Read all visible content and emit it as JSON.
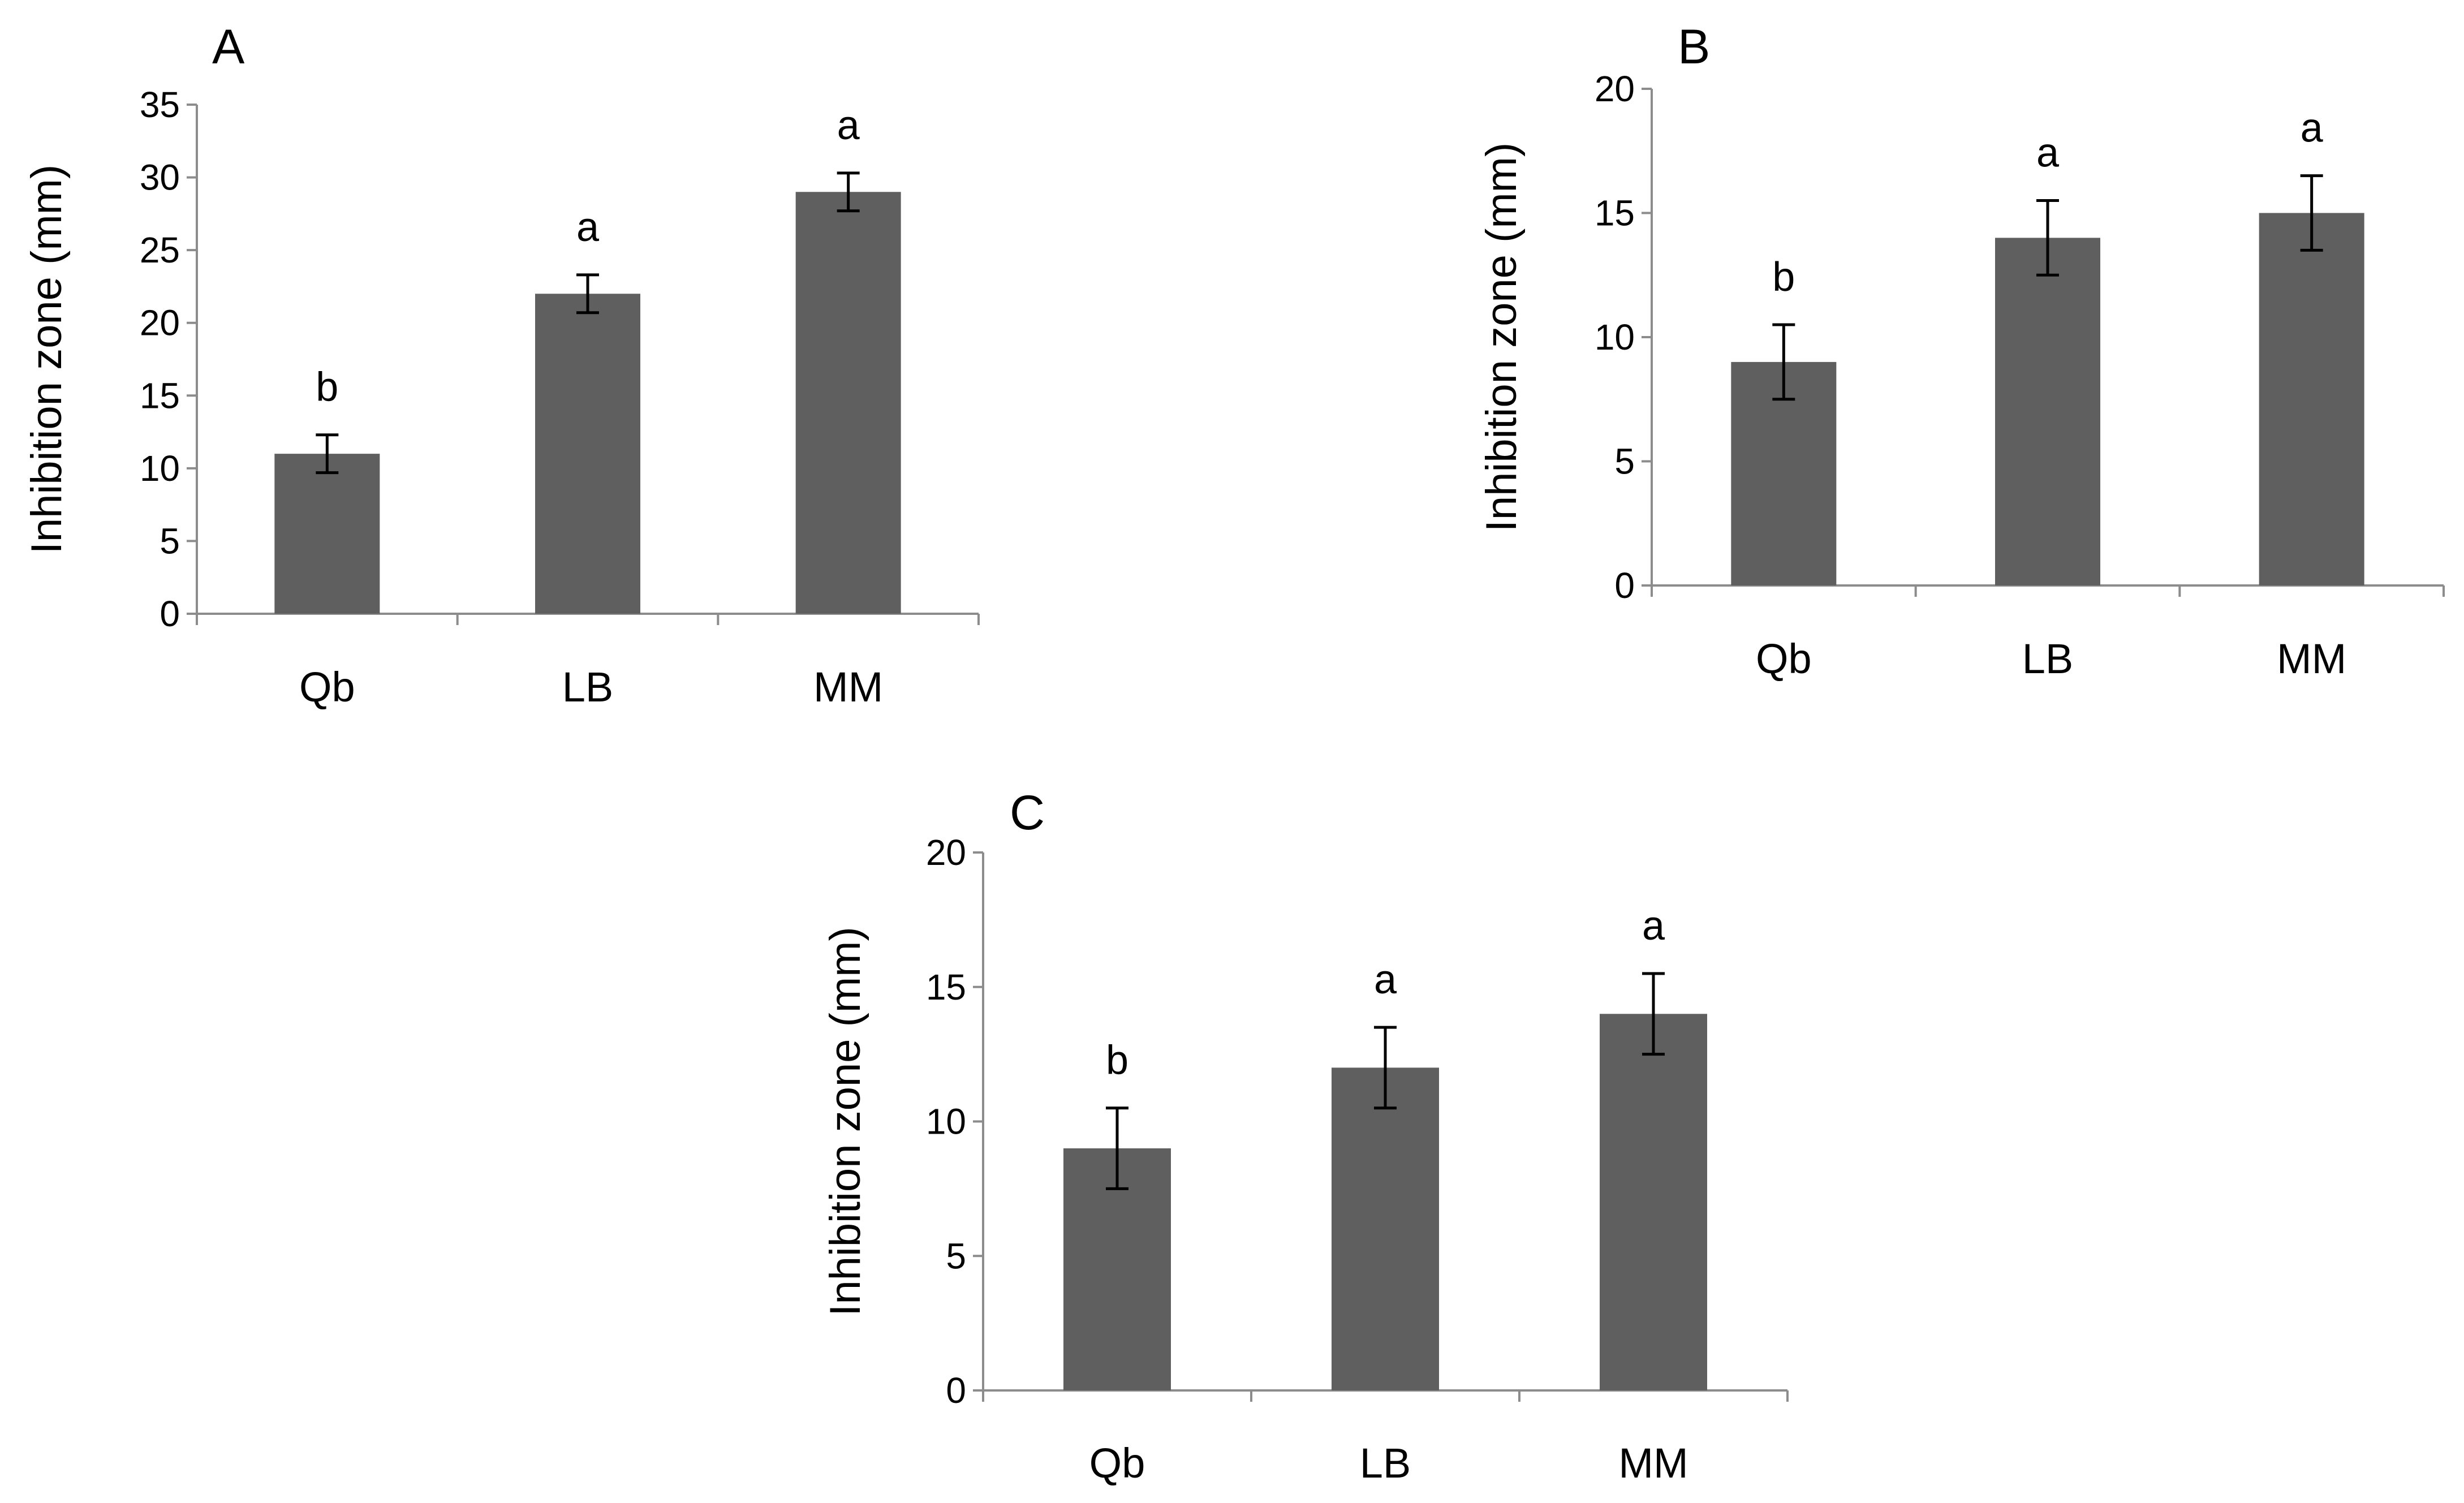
{
  "colors": {
    "bar": "#5f5f5f",
    "axis": "#8c8c8c",
    "error_bar": "#000000"
  },
  "chart_data": [
    {
      "panel": "A",
      "type": "bar",
      "categories": [
        "Qb",
        "LB",
        "MM"
      ],
      "values": [
        11,
        22,
        29
      ],
      "errors": [
        1.3,
        1.3,
        1.3
      ],
      "significance": [
        "b",
        "a",
        "a"
      ],
      "ylabel": "Inhibition zone (mm)",
      "xlabel": "",
      "ylim": [
        0,
        35
      ],
      "yticks": [
        "0",
        "5",
        "10",
        "15",
        "20",
        "25",
        "30",
        "35"
      ],
      "grid": false
    },
    {
      "panel": "B",
      "type": "bar",
      "categories": [
        "Qb",
        "LB",
        "MM"
      ],
      "values": [
        9,
        14,
        15
      ],
      "errors": [
        1.5,
        1.5,
        1.5
      ],
      "significance": [
        "b",
        "a",
        "a"
      ],
      "ylabel": "Inhibition zone (mm)",
      "xlabel": "",
      "ylim": [
        0,
        20
      ],
      "yticks": [
        "0",
        "5",
        "10",
        "15",
        "20"
      ],
      "grid": false
    },
    {
      "panel": "C",
      "type": "bar",
      "categories": [
        "Qb",
        "LB",
        "MM"
      ],
      "values": [
        9,
        12,
        14
      ],
      "errors": [
        1.5,
        1.5,
        1.5
      ],
      "significance": [
        "b",
        "a",
        "a"
      ],
      "ylabel": "Inhibition zone (mm)",
      "xlabel": "",
      "ylim": [
        0,
        20
      ],
      "yticks": [
        "0",
        "5",
        "10",
        "15",
        "20"
      ],
      "grid": false
    }
  ]
}
